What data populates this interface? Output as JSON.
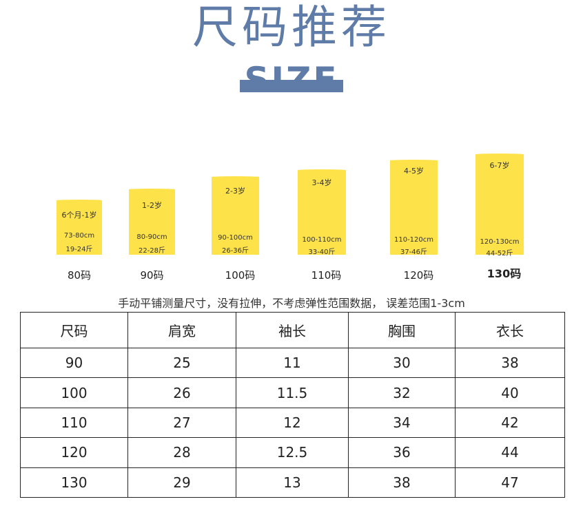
{
  "title": "尺码推荐",
  "subtitle": "SIZE",
  "colors": {
    "accent": "#5f7ca8",
    "card": "#fde24a"
  },
  "cards": [
    {
      "age": "6个月-1岁",
      "height": "73-80cm",
      "weight": "19-24斤",
      "size": "80码"
    },
    {
      "age": "1-2岁",
      "height": "80-90cm",
      "weight": "22-28斤",
      "size": "90码"
    },
    {
      "age": "2-3岁",
      "height": "90-100cm",
      "weight": "26-36斤",
      "size": "100码"
    },
    {
      "age": "3-4岁",
      "height": "100-110cm",
      "weight": "33-40斤",
      "size": "110码"
    },
    {
      "age": "4-5岁",
      "height": "110-120cm",
      "weight": "37-46斤",
      "size": "120码"
    },
    {
      "age": "6-7岁",
      "height": "120-130cm",
      "weight": "44-52斤",
      "size": "130码"
    }
  ],
  "note": "手动平铺测量尺寸，没有拉伸，不考虑弹性范围数据， 误差范围1-3cm",
  "table": {
    "headers": [
      "尺码",
      "肩宽",
      "袖长",
      "胸围",
      "衣长"
    ],
    "rows": [
      [
        "90",
        "25",
        "11",
        "30",
        "38"
      ],
      [
        "100",
        "26",
        "11.5",
        "32",
        "40"
      ],
      [
        "110",
        "27",
        "12",
        "34",
        "42"
      ],
      [
        "120",
        "28",
        "12.5",
        "36",
        "44"
      ],
      [
        "130",
        "29",
        "13",
        "38",
        "47"
      ]
    ]
  }
}
